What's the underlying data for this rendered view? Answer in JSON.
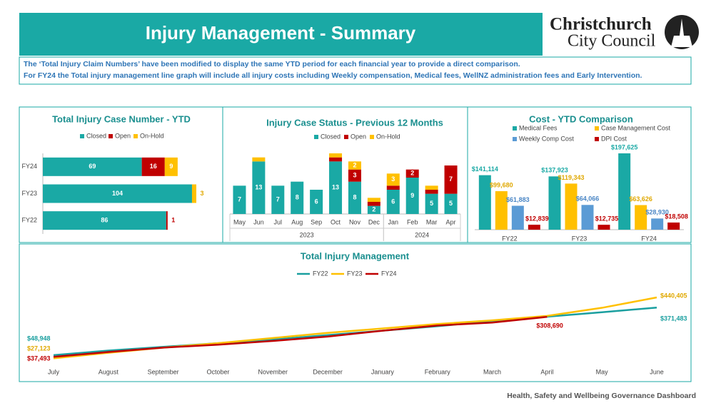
{
  "header": {
    "title": "Injury Management - Summary",
    "logo_line1": "Christchurch",
    "logo_line2": "City Council"
  },
  "notes": [
    "The ‘Total Injury Claim Numbers’ have been modified to display the same YTD period for each financial year to provide a direct comparison.",
    "For FY24  the Total injury management line graph will include all injury costs including Weekly compensation, Medical fees,  WellNZ administration fees and Early Intervention."
  ],
  "footer": "Health, Safety and Wellbeing Governance Dashboard",
  "chart_data": [
    {
      "type": "bar",
      "orientation": "horizontal",
      "stacked": true,
      "title": "Total Injury Case Number - YTD",
      "categories": [
        "FY24",
        "FY23",
        "FY22"
      ],
      "series": [
        {
          "name": "Closed",
          "color": "#1aa9a5",
          "values": [
            69,
            104,
            86
          ]
        },
        {
          "name": "Open",
          "color": "#c00000",
          "values": [
            16,
            null,
            1
          ]
        },
        {
          "name": "On-Hold",
          "color": "#ffc000",
          "values": [
            9,
            3,
            null
          ]
        }
      ]
    },
    {
      "type": "bar",
      "orientation": "vertical",
      "stacked": true,
      "title": "Injury Case Status - Previous 12 Months",
      "categories": [
        "May",
        "Jun",
        "Jul",
        "Aug",
        "Sep",
        "Oct",
        "Nov",
        "Dec",
        "Jan",
        "Feb",
        "Mar",
        "Apr"
      ],
      "groups": [
        {
          "name": "2023",
          "count": 8
        },
        {
          "name": "2024",
          "count": 4
        }
      ],
      "series": [
        {
          "name": "Closed",
          "color": "#1aa9a5",
          "values": [
            7,
            13,
            7,
            8,
            6,
            13,
            8,
            2,
            6,
            9,
            5,
            5
          ]
        },
        {
          "name": "Open",
          "color": "#c00000",
          "values": [
            null,
            null,
            null,
            null,
            null,
            1,
            3,
            1,
            1,
            2,
            1,
            7
          ]
        },
        {
          "name": "On-Hold",
          "color": "#ffc000",
          "values": [
            null,
            1,
            null,
            null,
            null,
            1,
            2,
            1,
            3,
            null,
            1,
            null
          ]
        }
      ]
    },
    {
      "type": "bar",
      "orientation": "vertical",
      "stacked": false,
      "title": "Cost - YTD Comparison",
      "categories": [
        "FY22",
        "FY23",
        "FY24"
      ],
      "series": [
        {
          "name": "Medical Fees",
          "color": "#1aa9a5",
          "values": [
            141114,
            137923,
            197625
          ],
          "value_labels": [
            "$141,114",
            "$137,923",
            "$197,625"
          ]
        },
        {
          "name": "Case Management Cost",
          "color": "#ffc000",
          "values": [
            99680,
            119343,
            63626
          ],
          "value_labels": [
            "$99,680",
            "$119,343",
            "$63,626"
          ]
        },
        {
          "name": "Weekly Comp Cost",
          "color": "#5b9bd5",
          "values": [
            61883,
            64066,
            28930
          ],
          "value_labels": [
            "$61,883",
            "$64,066",
            "$28,930"
          ]
        },
        {
          "name": "DPI Cost",
          "color": "#c00000",
          "values": [
            12839,
            12735,
            18508
          ],
          "value_labels": [
            "$12,839",
            "$12,735",
            "$18,508"
          ]
        }
      ]
    },
    {
      "type": "line",
      "title": "Total Injury Management",
      "categories": [
        "July",
        "August",
        "September",
        "October",
        "November",
        "December",
        "January",
        "February",
        "March",
        "April",
        "May",
        "June"
      ],
      "series": [
        {
          "name": "FY22",
          "color": "#1a9f9f",
          "values": [
            48948,
            80000,
            105000,
            130000,
            155000,
            185000,
            215000,
            245000,
            280000,
            310000,
            340000,
            371483
          ],
          "value_labels": [
            "$48,948",
            null,
            null,
            null,
            null,
            null,
            null,
            null,
            null,
            null,
            null,
            "$371,483"
          ]
        },
        {
          "name": "FY23",
          "color": "#ffc000",
          "values": [
            27123,
            65000,
            100000,
            130000,
            165000,
            200000,
            230000,
            260000,
            285000,
            315000,
            370000,
            440405
          ],
          "value_labels": [
            "$27,123",
            null,
            null,
            null,
            null,
            null,
            null,
            null,
            null,
            null,
            null,
            "$440,405"
          ]
        },
        {
          "name": "FY24",
          "color": "#c00000",
          "values": [
            37493,
            70000,
            100000,
            120000,
            145000,
            175000,
            215000,
            250000,
            270000,
            308690,
            null,
            null
          ],
          "value_labels": [
            "$37,493",
            null,
            null,
            null,
            null,
            null,
            null,
            null,
            null,
            "$308,690",
            null,
            null
          ]
        }
      ]
    }
  ]
}
